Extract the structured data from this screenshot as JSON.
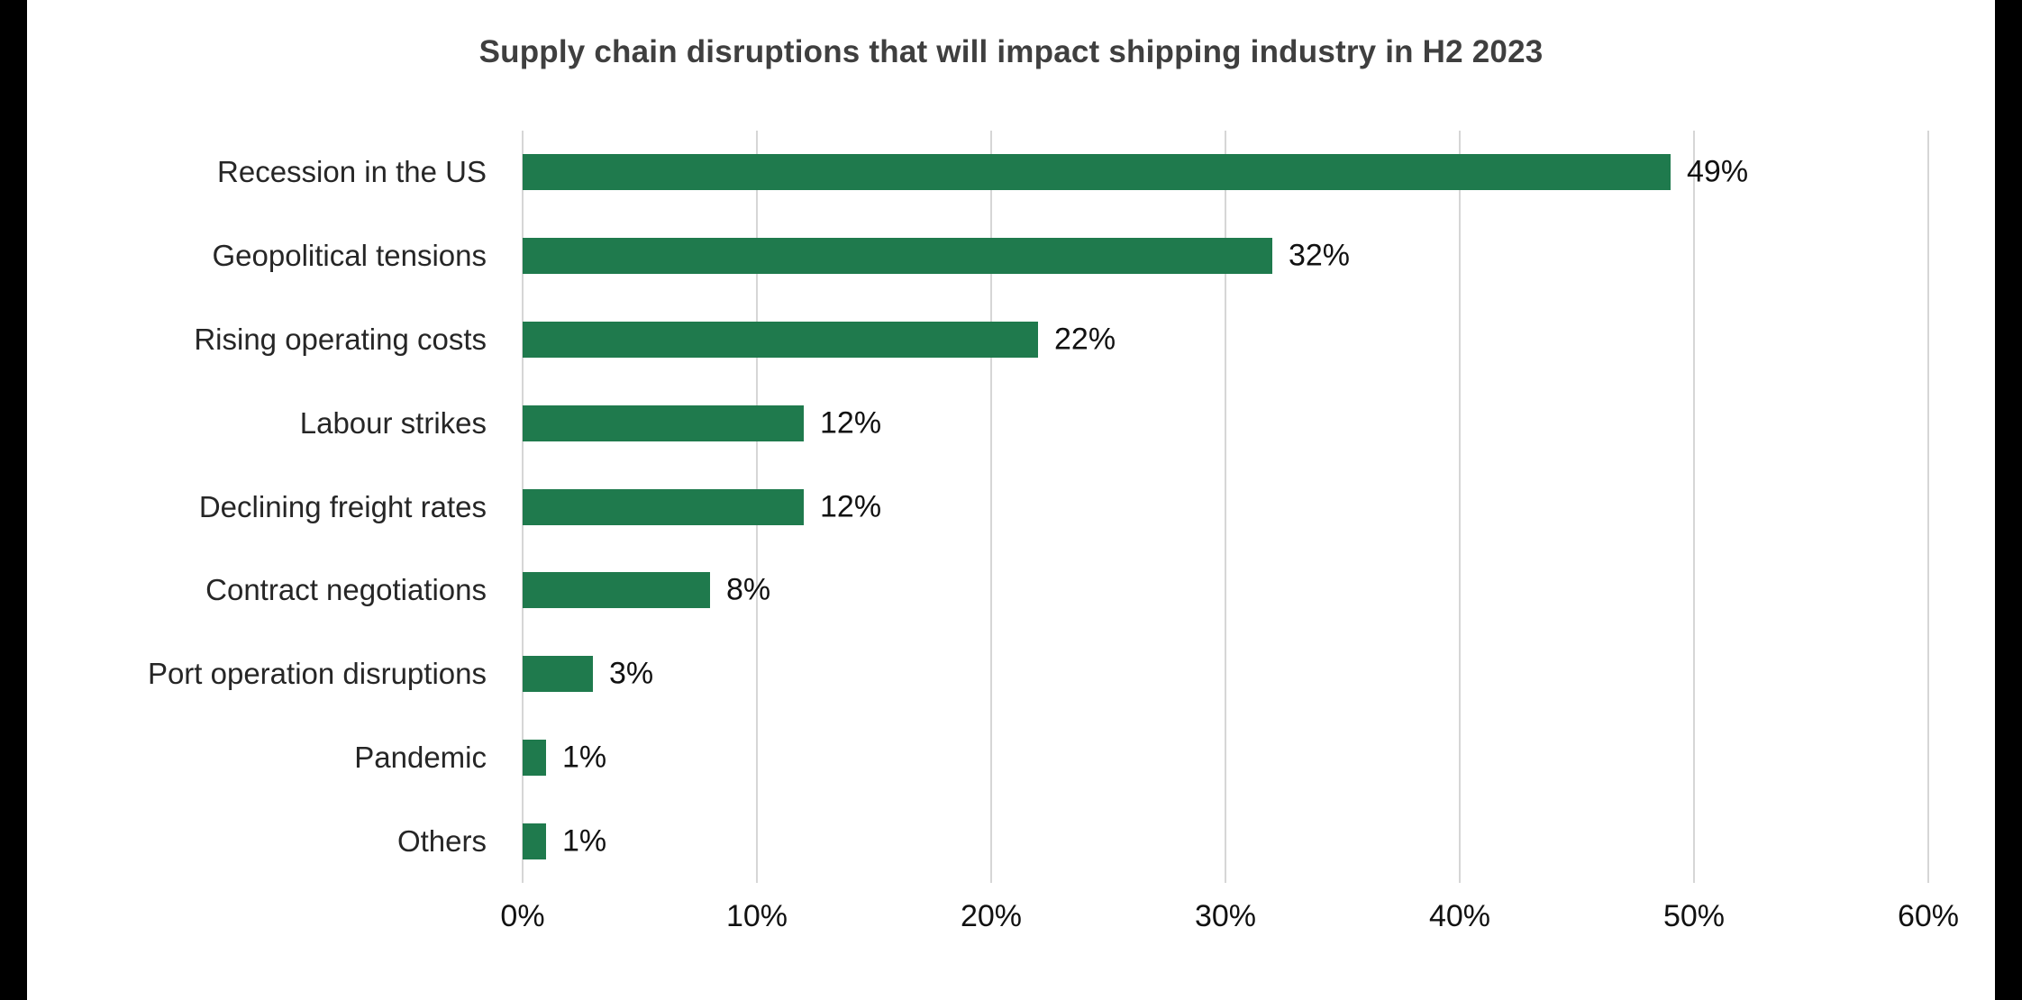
{
  "frame": {
    "background_color": "#ffffff",
    "edge_bar_color": "#000000"
  },
  "chart_data": {
    "type": "bar",
    "orientation": "horizontal",
    "title": "Supply chain disruptions that will impact shipping industry in H2 2023",
    "categories": [
      "Recession in the US",
      "Geopolitical tensions",
      "Rising operating costs",
      "Labour strikes",
      "Declining freight rates",
      "Contract negotiations",
      "Port operation disruptions",
      "Pandemic",
      "Others"
    ],
    "values": [
      49,
      32,
      22,
      12,
      12,
      8,
      3,
      1,
      1
    ],
    "value_labels": [
      "49%",
      "32%",
      "22%",
      "12%",
      "12%",
      "8%",
      "3%",
      "1%",
      "1%"
    ],
    "x_ticks": [
      "0%",
      "10%",
      "20%",
      "30%",
      "40%",
      "50%",
      "60%"
    ],
    "x_tick_values": [
      0,
      10,
      20,
      30,
      40,
      50,
      60
    ],
    "xlim": [
      0,
      60
    ],
    "xlabel": "",
    "ylabel": "",
    "bar_color": "#1f7a4d",
    "gridline_color": "#d6d6d6",
    "title_color": "#3f3f3f",
    "label_color": "#262626",
    "grid": "vertical",
    "legend": "none"
  }
}
